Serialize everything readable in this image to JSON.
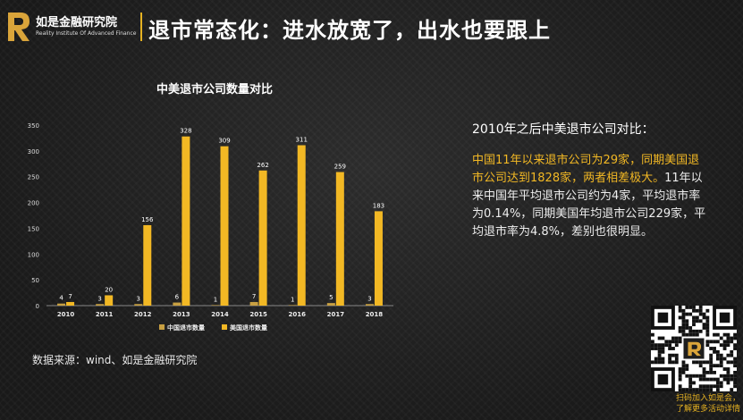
{
  "header": {
    "logo_cn": "如是金融研究院",
    "logo_en": "Reality Institute Of Advanced Finance",
    "title": "退市常态化：进水放宽了，出水也要跟上"
  },
  "colors": {
    "china": "#c8a042",
    "usa": "#f2b824",
    "accent": "#e6b222",
    "background": "#1e1e1e"
  },
  "chart_data": {
    "type": "bar",
    "title": "中美退市公司数量对比",
    "categories": [
      "2010",
      "2011",
      "2012",
      "2013",
      "2014",
      "2015",
      "2016",
      "2017",
      "2018"
    ],
    "series": [
      {
        "name": "中国退市数量",
        "values": [
          4,
          3,
          3,
          6,
          1,
          7,
          1,
          5,
          3
        ]
      },
      {
        "name": "美国退市数量",
        "values": [
          7,
          20,
          156,
          328,
          309,
          262,
          311,
          259,
          183
        ]
      }
    ],
    "ylim": [
      0,
      350
    ],
    "yticks": [
      0,
      50,
      100,
      150,
      200,
      250,
      300,
      350
    ],
    "xlabel": "",
    "ylabel": "",
    "grid": false,
    "legend": "bottom"
  },
  "right_panel": {
    "title": "2010年之后中美退市公司对比：",
    "highlight": "中国11年以来退市公司为29家，同期美国退市公司达到1828家，两者相差极大。",
    "body": "11年以来中国年平均退市公司约为4家，平均退市率为0.14%，同期美国年均退市公司229家，平均退市率为4.8%，差别也很明显。"
  },
  "source": "数据来源：wind、如是金融研究院",
  "qr": {
    "caption_line1": "扫码加入如是会，",
    "caption_line2": "了解更多活动详情"
  }
}
